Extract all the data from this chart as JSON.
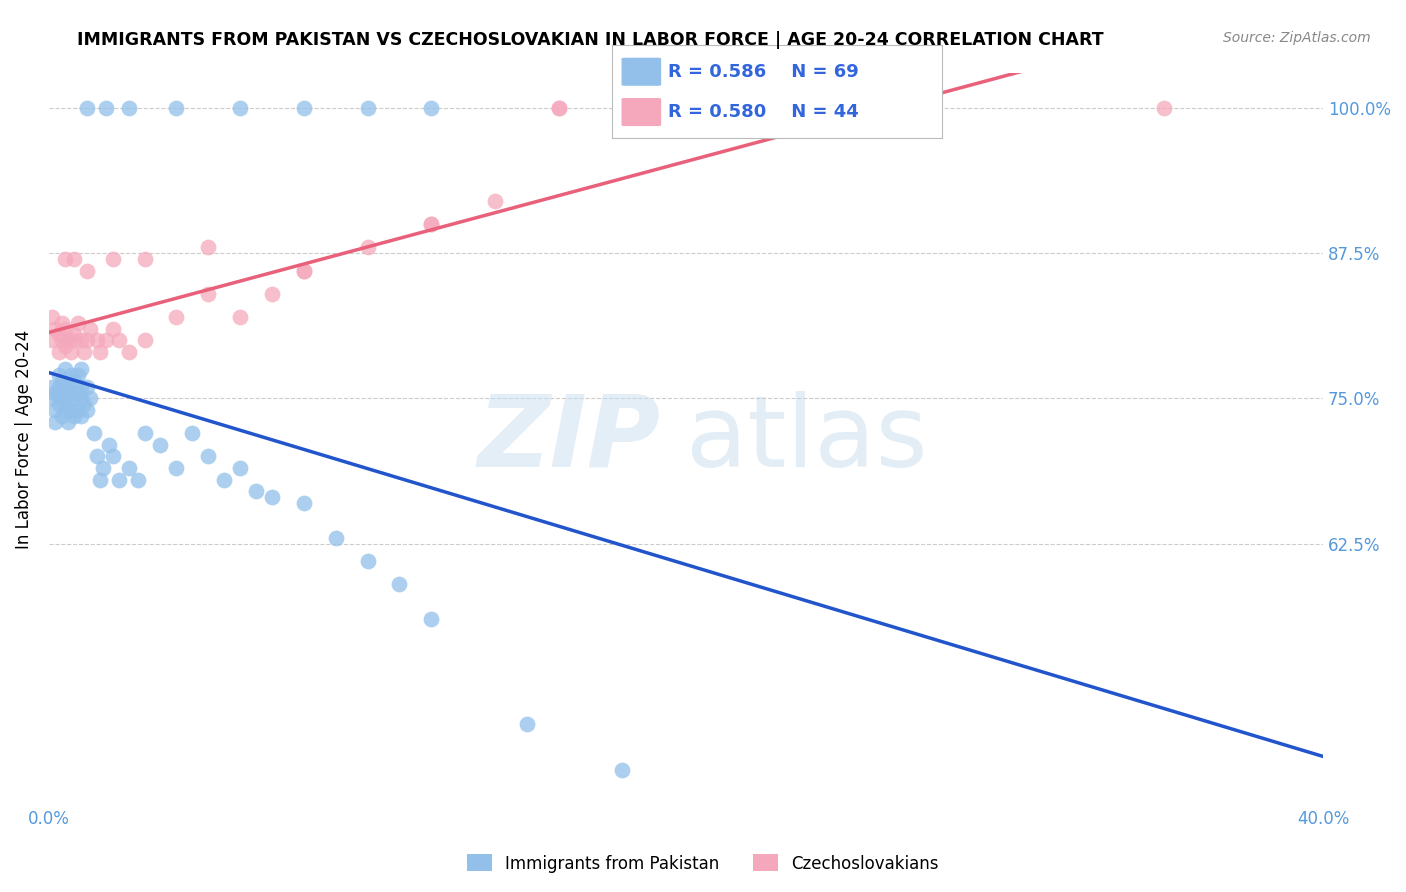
{
  "title": "IMMIGRANTS FROM PAKISTAN VS CZECHOSLOVAKIAN IN LABOR FORCE | AGE 20-24 CORRELATION CHART",
  "source": "Source: ZipAtlas.com",
  "ylabel": "In Labor Force | Age 20-24",
  "xlim": [
    0.0,
    0.4
  ],
  "ylim": [
    0.4,
    1.03
  ],
  "xticks": [
    0.0,
    0.08,
    0.16,
    0.24,
    0.32,
    0.4
  ],
  "xticklabels": [
    "0.0%",
    "",
    "",
    "",
    "",
    "40.0%"
  ],
  "yticks": [
    0.625,
    0.75,
    0.875,
    1.0
  ],
  "yticklabels": [
    "62.5%",
    "75.0%",
    "87.5%",
    "100.0%"
  ],
  "pakistan_color": "#92c0ea",
  "czechoslovakian_color": "#f5a8bc",
  "pakistan_R": 0.586,
  "pakistan_N": 69,
  "czechoslovakian_R": 0.58,
  "czechoslovakian_N": 44,
  "pakistan_line_color": "#2255cc",
  "czechoslovakian_line_color": "#e8607a",
  "legend_text_color": "#3366dd",
  "tick_color": "#5599dd",
  "pak_x": [
    0.001,
    0.001,
    0.002,
    0.002,
    0.002,
    0.003,
    0.003,
    0.003,
    0.003,
    0.004,
    0.004,
    0.004,
    0.005,
    0.005,
    0.005,
    0.005,
    0.006,
    0.006,
    0.006,
    0.007,
    0.007,
    0.007,
    0.008,
    0.008,
    0.008,
    0.009,
    0.009,
    0.009,
    0.01,
    0.01,
    0.01,
    0.01,
    0.011,
    0.012,
    0.012,
    0.013,
    0.014,
    0.015,
    0.016,
    0.017,
    0.019,
    0.02,
    0.022,
    0.025,
    0.028,
    0.03,
    0.035,
    0.04,
    0.045,
    0.05,
    0.055,
    0.06,
    0.065,
    0.07,
    0.08,
    0.09,
    0.1,
    0.11,
    0.12,
    0.15,
    0.18,
    0.012,
    0.018,
    0.025,
    0.04,
    0.06,
    0.08,
    0.1,
    0.12
  ],
  "pak_y": [
    0.75,
    0.76,
    0.74,
    0.755,
    0.73,
    0.75,
    0.745,
    0.76,
    0.77,
    0.735,
    0.75,
    0.765,
    0.74,
    0.75,
    0.76,
    0.775,
    0.73,
    0.745,
    0.76,
    0.74,
    0.755,
    0.77,
    0.735,
    0.75,
    0.765,
    0.74,
    0.755,
    0.77,
    0.735,
    0.75,
    0.76,
    0.775,
    0.745,
    0.74,
    0.76,
    0.75,
    0.72,
    0.7,
    0.68,
    0.69,
    0.71,
    0.7,
    0.68,
    0.69,
    0.68,
    0.72,
    0.71,
    0.69,
    0.72,
    0.7,
    0.68,
    0.69,
    0.67,
    0.665,
    0.66,
    0.63,
    0.61,
    0.59,
    0.56,
    0.47,
    0.43,
    1.0,
    1.0,
    1.0,
    1.0,
    1.0,
    1.0,
    1.0,
    1.0
  ],
  "czech_x": [
    0.001,
    0.001,
    0.002,
    0.003,
    0.003,
    0.004,
    0.004,
    0.005,
    0.005,
    0.006,
    0.007,
    0.008,
    0.008,
    0.009,
    0.01,
    0.011,
    0.012,
    0.013,
    0.015,
    0.016,
    0.018,
    0.02,
    0.022,
    0.025,
    0.03,
    0.04,
    0.05,
    0.06,
    0.07,
    0.08,
    0.1,
    0.12,
    0.14,
    0.16,
    0.005,
    0.008,
    0.012,
    0.02,
    0.03,
    0.05,
    0.08,
    0.12,
    0.16,
    0.35
  ],
  "czech_y": [
    0.8,
    0.82,
    0.81,
    0.79,
    0.805,
    0.8,
    0.815,
    0.795,
    0.81,
    0.8,
    0.79,
    0.805,
    0.8,
    0.815,
    0.8,
    0.79,
    0.8,
    0.81,
    0.8,
    0.79,
    0.8,
    0.81,
    0.8,
    0.79,
    0.8,
    0.82,
    0.84,
    0.82,
    0.84,
    0.86,
    0.88,
    0.9,
    0.92,
    1.0,
    0.87,
    0.87,
    0.86,
    0.87,
    0.87,
    0.88,
    0.86,
    0.9,
    1.0,
    1.0
  ]
}
